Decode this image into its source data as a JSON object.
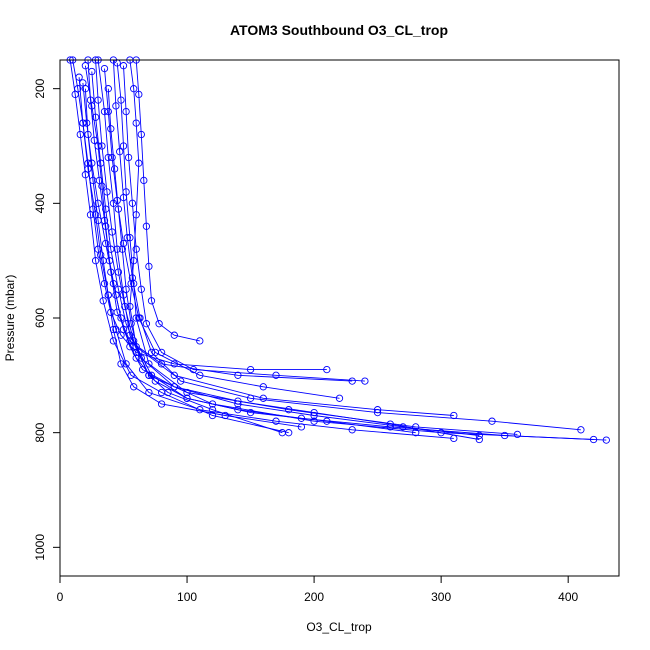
{
  "chart_data": {
    "type": "scatter",
    "title": "ATOM3 Southbound O3_CL_trop",
    "xlabel": "O3_CL_trop",
    "ylabel": "Pressure (mbar)",
    "xlim": [
      0,
      440
    ],
    "ylim": [
      1050,
      150
    ],
    "y_reversed": true,
    "x_ticks": [
      "0",
      "100",
      "200",
      "300",
      "400"
    ],
    "y_ticks": [
      "200",
      "400",
      "600",
      "800",
      "1000"
    ],
    "grid": false,
    "color": "#0000ff",
    "marker": "open-circle",
    "connect_lines": true,
    "series": [
      {
        "x": [
          10,
          14,
          18,
          22,
          26,
          30,
          35,
          40,
          48,
          60,
          90,
          150,
          210
        ],
        "y": [
          150,
          200,
          260,
          330,
          410,
          480,
          540,
          590,
          630,
          660,
          680,
          690,
          690
        ]
      },
      {
        "x": [
          20,
          25,
          30,
          33,
          36,
          40,
          45,
          55,
          80,
          140,
          230
        ],
        "y": [
          160,
          230,
          300,
          370,
          440,
          520,
          590,
          640,
          680,
          700,
          710
        ]
      },
      {
        "x": [
          30,
          35,
          38,
          42,
          45,
          50,
          55,
          70,
          120,
          200,
          300,
          430
        ],
        "y": [
          150,
          240,
          320,
          400,
          480,
          560,
          630,
          700,
          750,
          780,
          800,
          813
        ]
      },
      {
        "x": [
          45,
          48,
          50,
          52,
          55,
          58,
          60,
          70,
          100,
          180,
          280,
          360
        ],
        "y": [
          155,
          220,
          300,
          380,
          460,
          540,
          600,
          680,
          730,
          760,
          790,
          803
        ]
      },
      {
        "x": [
          55,
          58,
          60,
          62,
          60,
          58,
          55,
          60,
          90,
          160,
          250,
          310
        ],
        "y": [
          150,
          200,
          260,
          330,
          420,
          500,
          580,
          650,
          700,
          740,
          760,
          770
        ]
      },
      {
        "x": [
          15,
          18,
          22,
          28,
          32,
          38,
          44,
          52,
          70,
          110,
          170,
          230,
          310
        ],
        "y": [
          180,
          260,
          340,
          420,
          490,
          560,
          620,
          680,
          730,
          760,
          780,
          795,
          810
        ]
      },
      {
        "x": [
          25,
          28,
          32,
          36,
          40,
          46,
          52,
          64,
          90,
          140,
          200,
          260,
          330
        ],
        "y": [
          170,
          250,
          330,
          410,
          480,
          550,
          610,
          670,
          720,
          745,
          765,
          785,
          812
        ]
      },
      {
        "x": [
          35,
          38,
          41,
          45,
          50,
          56,
          62,
          75,
          110,
          160,
          220
        ],
        "y": [
          165,
          240,
          320,
          395,
          470,
          540,
          600,
          660,
          700,
          720,
          740
        ]
      },
      {
        "x": [
          8,
          12,
          16,
          20,
          24,
          28,
          34,
          42,
          56,
          80,
          120,
          180
        ],
        "y": [
          150,
          210,
          280,
          350,
          420,
          500,
          570,
          640,
          700,
          730,
          770,
          800
        ]
      },
      {
        "x": [
          42,
          44,
          47,
          50,
          53,
          57,
          63,
          72,
          95,
          150,
          250,
          340,
          410
        ],
        "y": [
          150,
          230,
          310,
          390,
          460,
          530,
          600,
          660,
          710,
          740,
          765,
          780,
          795
        ]
      },
      {
        "x": [
          20,
          22,
          26,
          30,
          34,
          38,
          42,
          48,
          58,
          80,
          130,
          190
        ],
        "y": [
          200,
          280,
          360,
          430,
          500,
          560,
          620,
          680,
          720,
          750,
          770,
          790
        ]
      },
      {
        "x": [
          50,
          52,
          54,
          57,
          60,
          64,
          68,
          80,
          105,
          170,
          240
        ],
        "y": [
          160,
          240,
          320,
          400,
          480,
          550,
          610,
          660,
          690,
          700,
          710
        ]
      },
      {
        "x": [
          28,
          30,
          33,
          37,
          41,
          46,
          51,
          58,
          72,
          100,
          150,
          210,
          280
        ],
        "y": [
          150,
          220,
          300,
          380,
          450,
          520,
          580,
          640,
          700,
          740,
          765,
          780,
          800
        ]
      },
      {
        "x": [
          38,
          40,
          43,
          46,
          49,
          52,
          56,
          62,
          70,
          85,
          120,
          175
        ],
        "y": [
          200,
          270,
          340,
          410,
          480,
          550,
          610,
          660,
          700,
          730,
          760,
          800
        ]
      },
      {
        "x": [
          18,
          21,
          25,
          30,
          36,
          42,
          48,
          55,
          65,
          90,
          140,
          200,
          270,
          330
        ],
        "y": [
          190,
          260,
          330,
          400,
          470,
          540,
          600,
          650,
          690,
          720,
          750,
          770,
          790,
          805
        ]
      },
      {
        "x": [
          60,
          62,
          64,
          66,
          68,
          70,
          72,
          78,
          90,
          110
        ],
        "y": [
          150,
          210,
          280,
          360,
          440,
          510,
          570,
          610,
          630,
          640
        ]
      },
      {
        "x": [
          22,
          24,
          27,
          31,
          35,
          39,
          44,
          50,
          60,
          75,
          100,
          140,
          190,
          260,
          350,
          420
        ],
        "y": [
          150,
          220,
          290,
          360,
          430,
          500,
          560,
          620,
          670,
          710,
          740,
          760,
          775,
          790,
          805,
          812
        ]
      }
    ]
  }
}
